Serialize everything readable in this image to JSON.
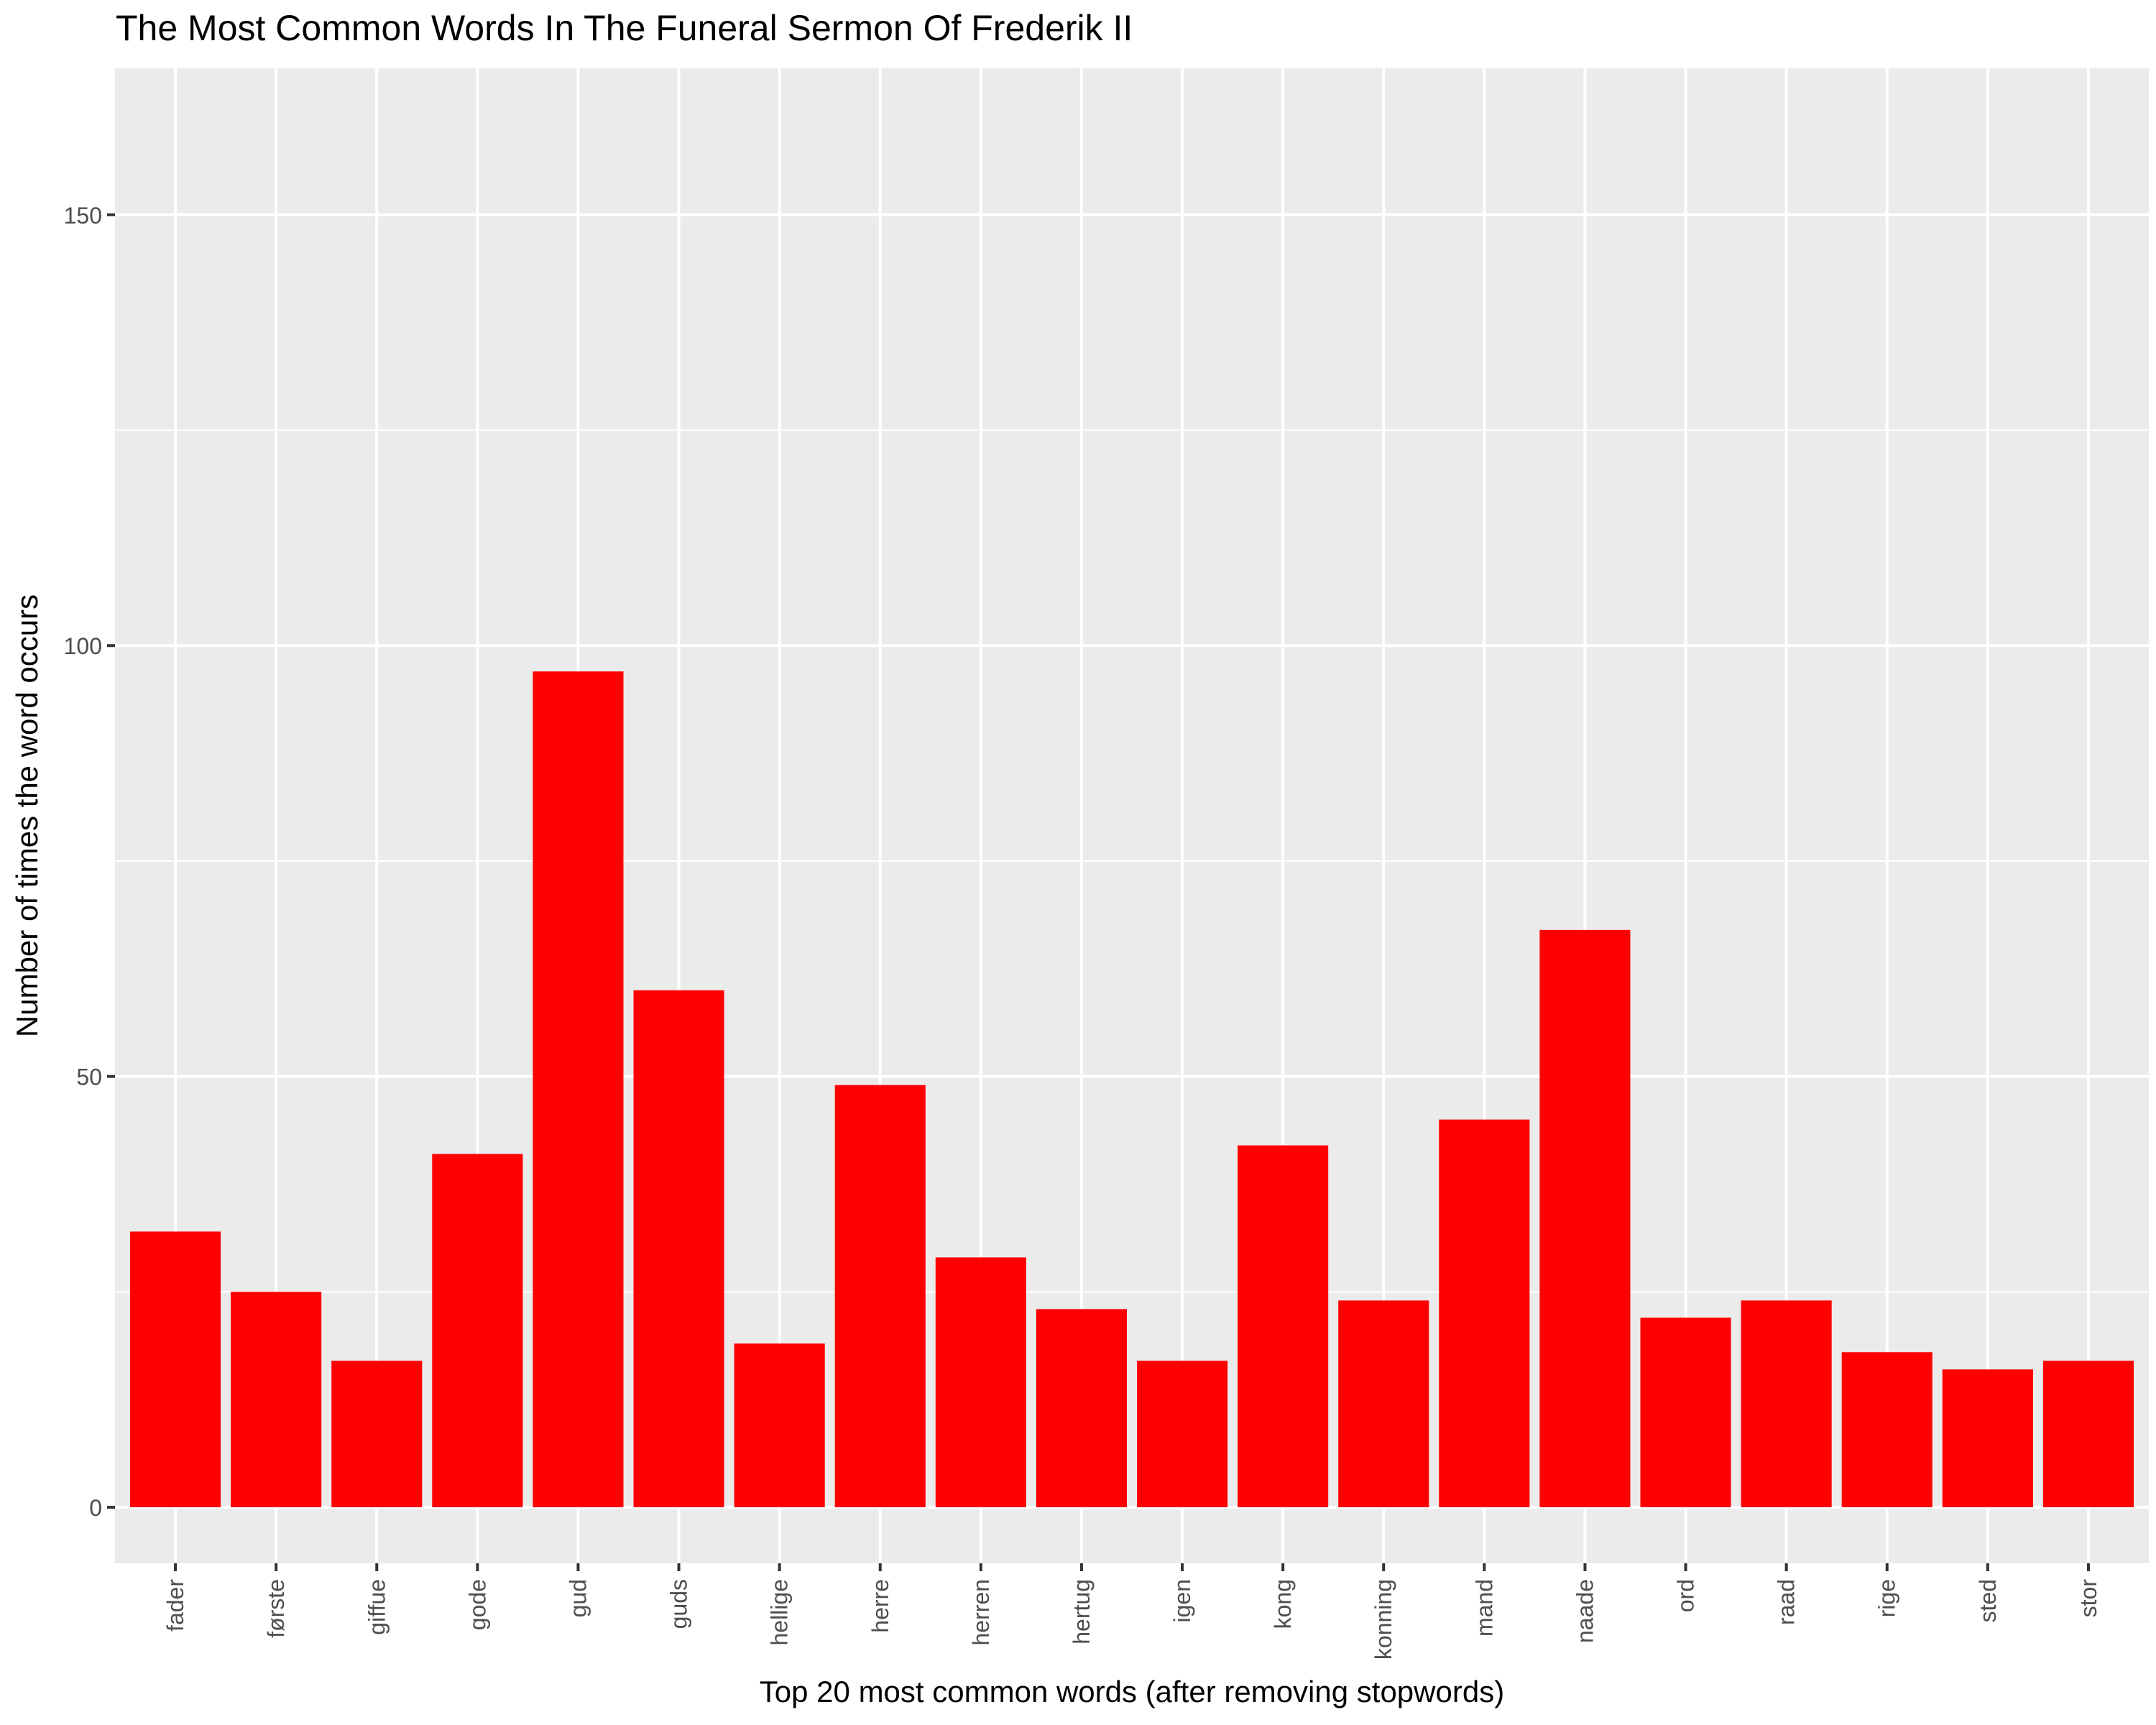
{
  "chart_data": {
    "type": "bar",
    "title": "The Most Common Words In The Funeral Sermon Of Frederik II",
    "xlabel": "Top 20 most common words (after removing stopwords)",
    "ylabel": "Number of times the word occurs",
    "categories": [
      "fader",
      "første",
      "giffue",
      "gode",
      "gud",
      "guds",
      "hellige",
      "herre",
      "herren",
      "hertug",
      "igen",
      "kong",
      "konning",
      "mand",
      "naade",
      "ord",
      "raad",
      "rige",
      "sted",
      "stor"
    ],
    "values": [
      32,
      25,
      17,
      41,
      97,
      60,
      19,
      49,
      29,
      23,
      17,
      42,
      24,
      45,
      67,
      22,
      24,
      18,
      16,
      17
    ],
    "ylim": [
      -6.5,
      167
    ],
    "yticks": [
      0,
      50,
      100,
      150
    ],
    "grid": true,
    "legend": "none",
    "bar_color": "#ff0000",
    "panel_color": "#ebebeb",
    "grid_color": "#ffffff"
  }
}
